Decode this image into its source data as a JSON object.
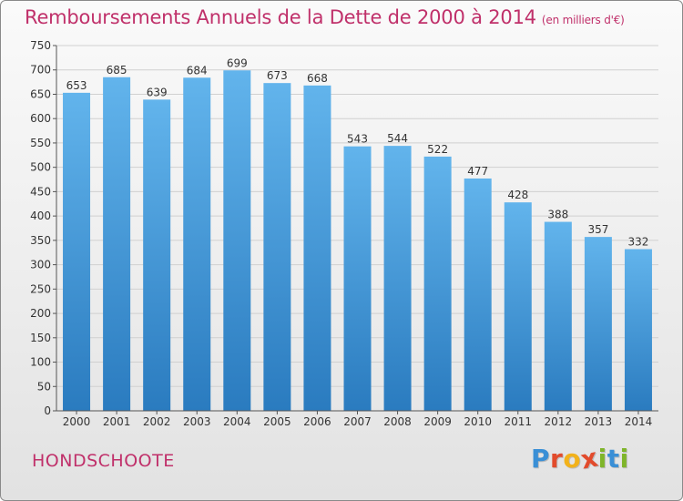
{
  "chart_data": {
    "type": "bar",
    "title": "Remboursements Annuels de la Dette de 2000 à 2014",
    "subtitle": "(en milliers d'€)",
    "categories": [
      "2000",
      "2001",
      "2002",
      "2003",
      "2004",
      "2005",
      "2006",
      "2007",
      "2008",
      "2009",
      "2010",
      "2011",
      "2012",
      "2013",
      "2014"
    ],
    "values": [
      653,
      685,
      639,
      684,
      699,
      673,
      668,
      543,
      544,
      522,
      477,
      428,
      388,
      357,
      332
    ],
    "ylim": [
      0,
      750
    ],
    "yticks": [
      0,
      50,
      100,
      150,
      200,
      250,
      300,
      350,
      400,
      450,
      500,
      550,
      600,
      650,
      700,
      750
    ],
    "grid": true,
    "bar_color_top": "#62b4ec",
    "bar_color_bottom": "#2a7bbf"
  },
  "footer": {
    "town": "HONDSCHOOTE",
    "logo_letters": [
      "P",
      "r",
      "o",
      "x",
      "i",
      "t",
      "i"
    ],
    "logo_colors": [
      "#3a8fd6",
      "#e24b2c",
      "#f2b21b",
      "#e24b2c",
      "#7fb52a",
      "#3a8fd6",
      "#7fb52a"
    ]
  },
  "colors": {
    "title": "#c0306a",
    "grid": "#d0d0d0"
  }
}
